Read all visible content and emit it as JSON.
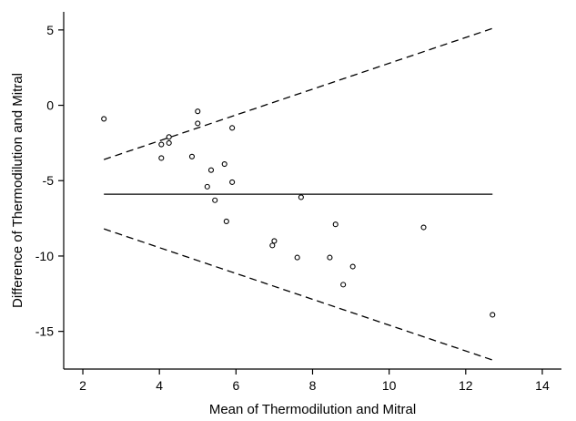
{
  "chart_data": {
    "type": "scatter",
    "title": "",
    "xlabel": "Mean of Thermodilution and Mitral",
    "ylabel": "Difference of Thermodilution and Mitral",
    "xlim": [
      1.5,
      14.5
    ],
    "ylim": [
      -17.5,
      6.2
    ],
    "xticks": [
      2,
      4,
      6,
      8,
      10,
      12,
      14
    ],
    "yticks": [
      5,
      0,
      -5,
      -10,
      -15
    ],
    "grid": false,
    "legend": "none",
    "points": [
      {
        "x": 2.55,
        "y": -0.9
      },
      {
        "x": 4.05,
        "y": -2.6
      },
      {
        "x": 4.05,
        "y": -3.5
      },
      {
        "x": 4.25,
        "y": -2.1
      },
      {
        "x": 4.25,
        "y": -2.5
      },
      {
        "x": 4.85,
        "y": -3.4
      },
      {
        "x": 5.0,
        "y": -0.4
      },
      {
        "x": 5.0,
        "y": -1.2
      },
      {
        "x": 5.25,
        "y": -5.4
      },
      {
        "x": 5.35,
        "y": -4.3
      },
      {
        "x": 5.45,
        "y": -6.3
      },
      {
        "x": 5.7,
        "y": -3.9
      },
      {
        "x": 5.75,
        "y": -7.7
      },
      {
        "x": 5.9,
        "y": -1.5
      },
      {
        "x": 5.9,
        "y": -5.1
      },
      {
        "x": 6.95,
        "y": -9.3
      },
      {
        "x": 7.0,
        "y": -9.0
      },
      {
        "x": 7.6,
        "y": -10.1
      },
      {
        "x": 7.7,
        "y": -6.1
      },
      {
        "x": 8.45,
        "y": -10.1
      },
      {
        "x": 8.6,
        "y": -7.9
      },
      {
        "x": 8.8,
        "y": -11.9
      },
      {
        "x": 9.05,
        "y": -10.7
      },
      {
        "x": 10.9,
        "y": -8.1
      },
      {
        "x": 12.7,
        "y": -13.9
      }
    ],
    "mean_line": {
      "x": [
        2.55,
        12.7
      ],
      "y": [
        -5.9,
        -5.9
      ]
    },
    "upper_limit": {
      "x": [
        2.55,
        12.7
      ],
      "y": [
        -3.6,
        5.1
      ]
    },
    "lower_limit": {
      "x": [
        2.55,
        12.7
      ],
      "y": [
        -8.2,
        -16.9
      ]
    }
  }
}
